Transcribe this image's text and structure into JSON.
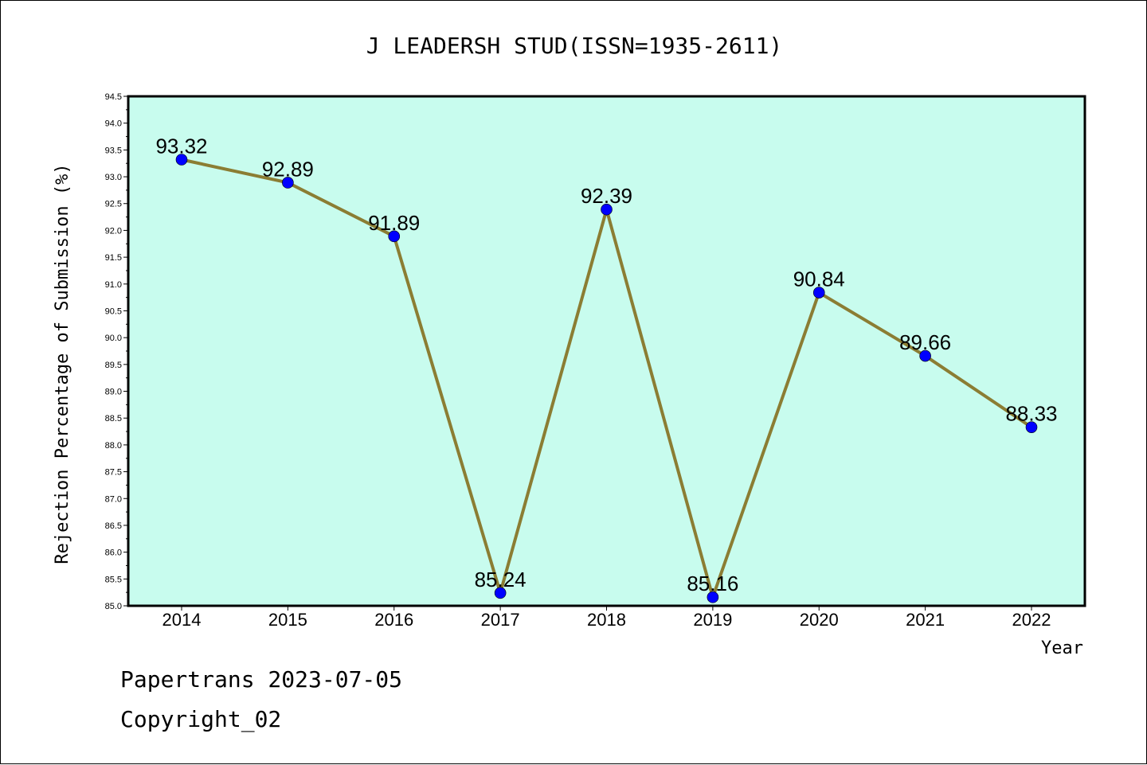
{
  "chart_data": {
    "type": "line",
    "title": "J LEADERSH STUD(ISSN=1935-2611)",
    "xlabel": "Year",
    "ylabel": "Rejection Percentage of Submission (%)",
    "categories": [
      "2014",
      "2015",
      "2016",
      "2017",
      "2018",
      "2019",
      "2020",
      "2021",
      "2022"
    ],
    "values": [
      93.32,
      92.89,
      91.89,
      85.24,
      92.39,
      85.16,
      90.84,
      89.66,
      88.33
    ],
    "data_labels": [
      "93.32",
      "92.89",
      "91.89",
      "85.24",
      "92.39",
      "85.16",
      "90.84",
      "89.66",
      "88.33"
    ],
    "ylim": [
      85.0,
      94.5
    ],
    "yticks": [
      "85.0",
      "85.5",
      "86.0",
      "86.5",
      "87.0",
      "87.5",
      "88.0",
      "88.5",
      "89.0",
      "89.5",
      "90.0",
      "90.5",
      "91.0",
      "91.5",
      "92.0",
      "92.5",
      "93.0",
      "93.5",
      "94.0",
      "94.5"
    ],
    "grid": false,
    "legend": "none",
    "colors": {
      "plot_background": "#c8fcee",
      "line": "#8b7d33",
      "marker": "#0000ff"
    }
  },
  "footer": {
    "line1": "Papertrans 2023-07-05",
    "line2": "Copyright_02"
  }
}
